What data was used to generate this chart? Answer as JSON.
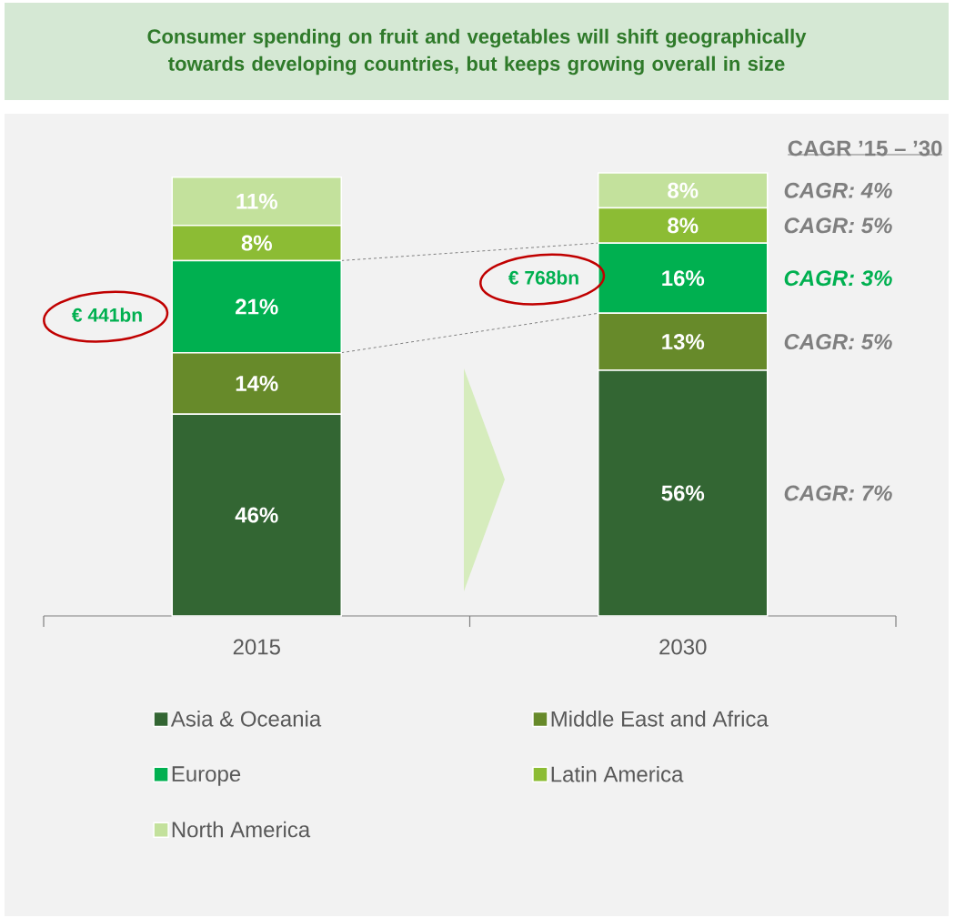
{
  "chart_data": {
    "type": "bar",
    "stacked": true,
    "title": "Consumer spending on fruit and vegetables will shift geographically towards developing countries, but keeps growing overall in size",
    "categories": [
      "2015",
      "2030"
    ],
    "series": [
      {
        "name": "Asia & Oceania",
        "color": "#336633",
        "values": [
          46,
          56
        ],
        "value_labels": [
          "46%",
          "56%"
        ]
      },
      {
        "name": "Middle East and Africa",
        "color": "#678A2A",
        "values": [
          14,
          13
        ],
        "value_labels": [
          "14%",
          "13%"
        ]
      },
      {
        "name": "Europe",
        "color": "#00B050",
        "values": [
          21,
          16
        ],
        "value_labels": [
          "21%",
          "16%"
        ]
      },
      {
        "name": "Latin America",
        "color": "#8CBC34",
        "values": [
          8,
          8
        ],
        "value_labels": [
          "8%",
          "8%"
        ]
      },
      {
        "name": "North America",
        "color": "#C3E19C",
        "values": [
          11,
          8
        ],
        "value_labels": [
          "11%",
          "8%"
        ]
      }
    ],
    "legend": "bottom",
    "annotations": [
      "CAGR ’15 – ’30",
      "CAGR: 7%",
      "CAGR: 5%",
      "CAGR: 3%",
      "CAGR: 5%",
      "CAGR: 4%",
      "€ 441bn",
      "€ 768bn"
    ]
  }
}
